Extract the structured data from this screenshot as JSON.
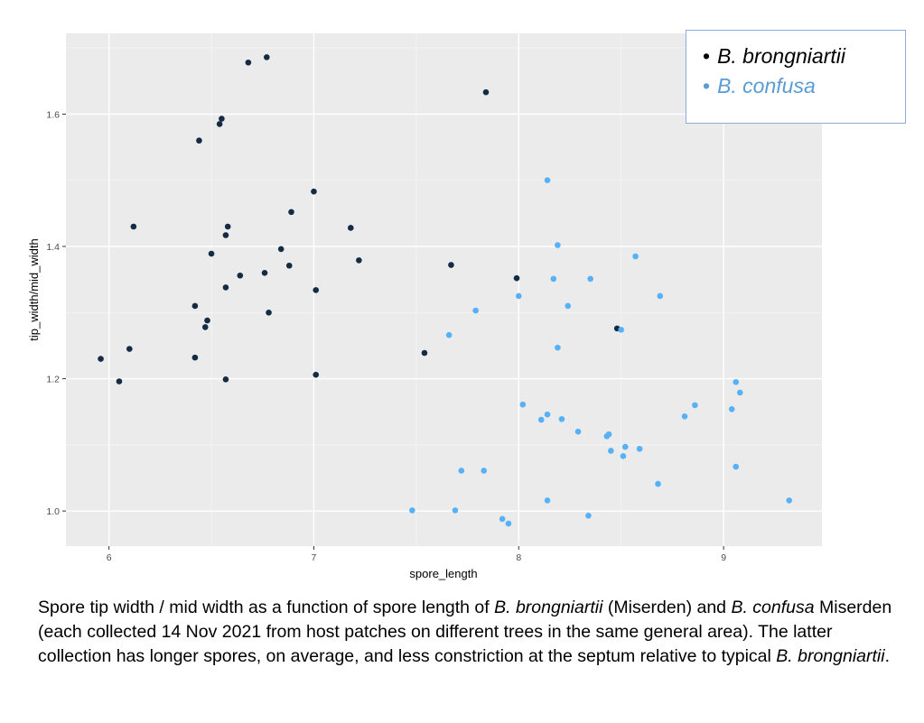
{
  "chart_data": {
    "type": "scatter",
    "title": "",
    "xlabel": "spore_length",
    "ylabel": "tip_width/mid_width",
    "xlim": [
      5.79,
      9.48
    ],
    "ylim": [
      0.947,
      1.722
    ],
    "xticks": [
      6,
      7,
      8,
      9
    ],
    "xtick_labels": [
      "6",
      "7",
      "8",
      "9"
    ],
    "yticks": [
      1.0,
      1.2,
      1.4,
      1.6
    ],
    "ytick_labels": [
      "1.0",
      "1.2",
      "1.4",
      "1.6"
    ],
    "grid": true,
    "legend_position": "top-right",
    "series": [
      {
        "name": "B. brongniartii",
        "color": "#132b43",
        "points": [
          [
            5.96,
            1.23
          ],
          [
            6.05,
            1.196
          ],
          [
            6.1,
            1.245
          ],
          [
            6.12,
            1.43
          ],
          [
            6.44,
            1.56
          ],
          [
            6.54,
            1.585
          ],
          [
            6.55,
            1.593
          ],
          [
            6.42,
            1.31
          ],
          [
            6.42,
            1.232
          ],
          [
            6.47,
            1.278
          ],
          [
            6.48,
            1.288
          ],
          [
            6.5,
            1.389
          ],
          [
            6.57,
            1.417
          ],
          [
            6.58,
            1.43
          ],
          [
            6.57,
            1.338
          ],
          [
            6.57,
            1.199
          ],
          [
            6.64,
            1.356
          ],
          [
            6.68,
            1.678
          ],
          [
            6.77,
            1.686
          ],
          [
            6.76,
            1.36
          ],
          [
            6.78,
            1.3
          ],
          [
            6.84,
            1.396
          ],
          [
            6.88,
            1.371
          ],
          [
            6.89,
            1.452
          ],
          [
            7.0,
            1.483
          ],
          [
            7.01,
            1.334
          ],
          [
            7.01,
            1.206
          ],
          [
            7.18,
            1.428
          ],
          [
            7.22,
            1.379
          ],
          [
            7.54,
            1.239
          ],
          [
            7.67,
            1.372
          ],
          [
            7.84,
            1.633
          ],
          [
            7.99,
            1.352
          ],
          [
            8.48,
            1.276
          ]
        ]
      },
      {
        "name": "B. confusa",
        "color": "#56b1f7",
        "points": [
          [
            8.14,
            1.5
          ],
          [
            8.19,
            1.402
          ],
          [
            8.17,
            1.351
          ],
          [
            8.19,
            1.247
          ],
          [
            8.0,
            1.325
          ],
          [
            8.24,
            1.31
          ],
          [
            8.35,
            1.351
          ],
          [
            7.79,
            1.303
          ],
          [
            7.66,
            1.266
          ],
          [
            8.02,
            1.161
          ],
          [
            8.11,
            1.138
          ],
          [
            8.14,
            1.146
          ],
          [
            8.21,
            1.139
          ],
          [
            8.29,
            1.12
          ],
          [
            8.43,
            1.113
          ],
          [
            8.44,
            1.116
          ],
          [
            8.45,
            1.091
          ],
          [
            8.5,
            1.274
          ],
          [
            8.51,
            1.083
          ],
          [
            8.52,
            1.097
          ],
          [
            8.59,
            1.094
          ],
          [
            8.57,
            1.385
          ],
          [
            8.69,
            1.325
          ],
          [
            8.68,
            1.041
          ],
          [
            8.81,
            1.143
          ],
          [
            8.86,
            1.16
          ],
          [
            9.04,
            1.154
          ],
          [
            9.06,
            1.195
          ],
          [
            9.08,
            1.179
          ],
          [
            9.06,
            1.067
          ],
          [
            9.32,
            1.016
          ],
          [
            8.14,
            1.016
          ],
          [
            8.34,
            0.993
          ],
          [
            7.92,
            0.988
          ],
          [
            7.95,
            0.981
          ],
          [
            7.83,
            1.061
          ],
          [
            7.72,
            1.061
          ],
          [
            7.69,
            1.001
          ],
          [
            7.48,
            1.001
          ]
        ]
      }
    ]
  },
  "legend": {
    "items": [
      {
        "bullet": "•",
        "label": "B. brongniartii",
        "color": "#000000"
      },
      {
        "bullet": "•",
        "label": "B. confusa",
        "color": "#5b9bd5"
      }
    ]
  },
  "caption": {
    "segments": [
      {
        "text": "Spore tip width / mid width as a function of spore length of ",
        "italic": false
      },
      {
        "text": "B. brongniartii",
        "italic": true
      },
      {
        "text": " (Miserden) and ",
        "italic": false
      },
      {
        "text": "B. confusa",
        "italic": true
      },
      {
        "text": " Miserden (each collected 14 Nov 2021 from host patches on different trees in the same general area). The latter collection has longer spores, on average, and less constriction at the septum relative to typical ",
        "italic": false
      },
      {
        "text": "B. brongniartii",
        "italic": true
      },
      {
        "text": ".",
        "italic": false
      }
    ]
  }
}
